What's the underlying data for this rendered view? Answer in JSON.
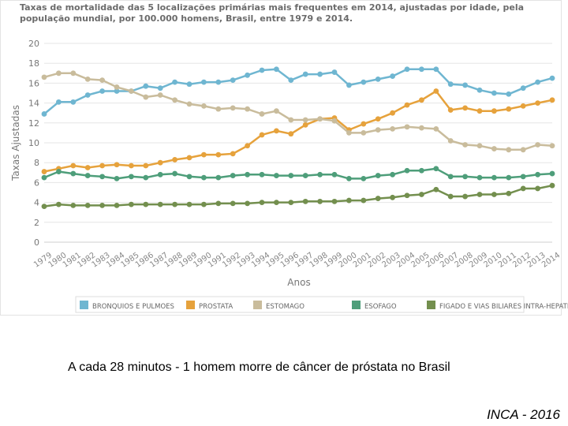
{
  "caption": "A cada 28 minutos - 1 homem morre de câncer de próstata no Brasil",
  "source": "INCA - 2016",
  "chart_data": {
    "type": "line",
    "title": "Taxas de mortalidade das 5 localizações primárias mais frequentes em 2014, ajustadas por idade, pela população mundial, por 100.000 homens, Brasil, entre 1979 e 2014.",
    "xlabel": "Anos",
    "ylabel": "Taxas Ajustadas",
    "ylim": [
      0,
      20
    ],
    "yticks": [
      "0",
      "2",
      "4",
      "6",
      "8",
      "10",
      "12",
      "14",
      "16",
      "18",
      "20"
    ],
    "grid": true,
    "legend_position": "bottom",
    "categories": [
      "1979",
      "1980",
      "1981",
      "1982",
      "1983",
      "1984",
      "1985",
      "1986",
      "1987",
      "1988",
      "1989",
      "1990",
      "1991",
      "1992",
      "1993",
      "1994",
      "1995",
      "1996",
      "1997",
      "1998",
      "1999",
      "2000",
      "2001",
      "2002",
      "2003",
      "2004",
      "2005",
      "2006",
      "2007",
      "2008",
      "2009",
      "2010",
      "2011",
      "2012",
      "2013",
      "2014"
    ],
    "series": [
      {
        "name": "BRONQUIOS E PULMOES",
        "color": "#6fb6d1",
        "values": [
          12.9,
          14.1,
          14.1,
          14.8,
          15.2,
          15.2,
          15.2,
          15.7,
          15.5,
          16.1,
          15.9,
          16.1,
          16.1,
          16.3,
          16.8,
          17.3,
          17.4,
          16.3,
          16.9,
          16.9,
          17.1,
          15.8,
          16.1,
          16.4,
          16.7,
          17.4,
          17.4,
          17.4,
          15.9,
          15.8,
          15.3,
          15.0,
          14.9,
          15.5,
          16.1,
          16.5
        ]
      },
      {
        "name": "PROSTATA",
        "color": "#e6a23c",
        "values": [
          7.1,
          7.4,
          7.7,
          7.5,
          7.7,
          7.8,
          7.7,
          7.7,
          8.0,
          8.3,
          8.5,
          8.8,
          8.8,
          8.9,
          9.7,
          10.8,
          11.2,
          10.9,
          11.8,
          12.4,
          12.5,
          11.3,
          11.9,
          12.4,
          13.0,
          13.8,
          14.3,
          15.2,
          13.3,
          13.5,
          13.2,
          13.2,
          13.4,
          13.7,
          14.0,
          14.3
        ]
      },
      {
        "name": "ESTOMAGO",
        "color": "#c9bc9c",
        "values": [
          16.6,
          17.0,
          17.0,
          16.4,
          16.3,
          15.6,
          15.2,
          14.6,
          14.8,
          14.3,
          13.9,
          13.7,
          13.4,
          13.5,
          13.4,
          12.9,
          13.2,
          12.3,
          12.3,
          12.4,
          12.2,
          11.0,
          11.0,
          11.3,
          11.4,
          11.6,
          11.5,
          11.4,
          10.2,
          9.8,
          9.7,
          9.4,
          9.3,
          9.3,
          9.8,
          9.7
        ]
      },
      {
        "name": "ESOFAGO",
        "color": "#4e9e7a",
        "values": [
          6.5,
          7.1,
          6.9,
          6.7,
          6.6,
          6.4,
          6.6,
          6.5,
          6.8,
          6.9,
          6.6,
          6.5,
          6.5,
          6.7,
          6.8,
          6.8,
          6.7,
          6.7,
          6.7,
          6.8,
          6.8,
          6.4,
          6.4,
          6.7,
          6.8,
          7.2,
          7.2,
          7.4,
          6.6,
          6.6,
          6.5,
          6.5,
          6.5,
          6.6,
          6.8,
          6.9
        ]
      },
      {
        "name": "FIGADO E VIAS BILIARES INTRA-HEPATICAS",
        "color": "#738f4e",
        "values": [
          3.6,
          3.8,
          3.7,
          3.7,
          3.7,
          3.7,
          3.8,
          3.8,
          3.8,
          3.8,
          3.8,
          3.8,
          3.9,
          3.9,
          3.9,
          4.0,
          4.0,
          4.0,
          4.1,
          4.1,
          4.1,
          4.2,
          4.2,
          4.4,
          4.5,
          4.7,
          4.8,
          5.3,
          4.6,
          4.6,
          4.8,
          4.8,
          4.9,
          5.4,
          5.4,
          5.7
        ]
      }
    ]
  }
}
